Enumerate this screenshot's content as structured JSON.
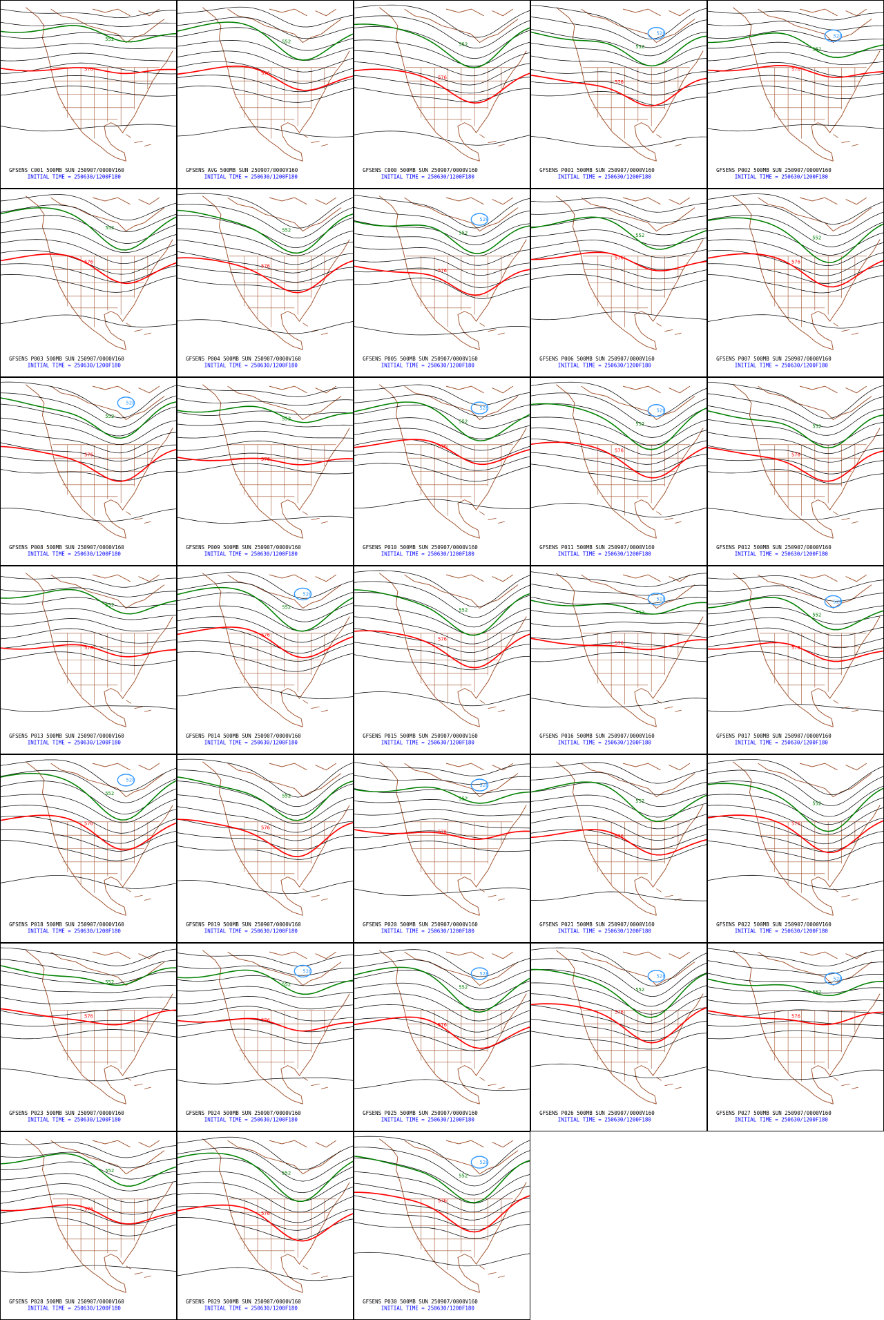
{
  "panels": [
    {
      "title": "GFSENS C001 500MB SUN 250907/0000V160",
      "init": "INITIAL TIME = 250630/1200F180",
      "labels": [
        "576",
        "552"
      ]
    },
    {
      "title": "GFSENS AVG 500MB SUN 250907/0000V160",
      "init": "INITIAL TIME = 250630/1200F180",
      "labels": [
        "576",
        "552"
      ]
    },
    {
      "title": "GFSENS C000 500MB SUN 250907/0000V160",
      "init": "INITIAL TIME = 250630/1200F180",
      "labels": [
        "576",
        "552"
      ]
    },
    {
      "title": "GFSENS P001 500MB SUN 250907/0000V160",
      "init": "INITIAL TIME = 250630/1200F180",
      "labels": [
        "576",
        "552",
        "528"
      ]
    },
    {
      "title": "GFSENS P002 500MB SUN 250907/0000V160",
      "init": "INITIAL TIME = 250630/1200F180",
      "labels": [
        "576",
        "552",
        "528"
      ]
    },
    {
      "title": "GFSENS P003 500MB SUN 250907/0000V160",
      "init": "INITIAL TIME = 250630/1200F180",
      "labels": [
        "576",
        "552"
      ]
    },
    {
      "title": "GFSENS P004 500MB SUN 250907/0000V160",
      "init": "INITIAL TIME = 250630/1200F180",
      "labels": [
        "576",
        "552"
      ]
    },
    {
      "title": "GFSENS P005 500MB SUN 250907/0000V160",
      "init": "INITIAL TIME = 250630/1200F180",
      "labels": [
        "576",
        "552",
        "528"
      ]
    },
    {
      "title": "GFSENS P006 500MB SUN 250907/0000V160",
      "init": "INITIAL TIME = 250630/1200F180",
      "labels": [
        "576",
        "552"
      ]
    },
    {
      "title": "GFSENS P007 500MB SUN 250907/0000V160",
      "init": "INITIAL TIME = 250630/1200F180",
      "labels": [
        "576",
        "552"
      ]
    },
    {
      "title": "GFSENS P008 500MB SUN 250907/0000V160",
      "init": "INITIAL TIME = 250630/1200F180",
      "labels": [
        "576",
        "552",
        "528"
      ]
    },
    {
      "title": "GFSENS P009 500MB SUN 250907/0000V160",
      "init": "INITIAL TIME = 250630/1200F180",
      "labels": [
        "576",
        "552"
      ]
    },
    {
      "title": "GFSENS P010 500MB SUN 250907/0000V160",
      "init": "INITIAL TIME = 250630/1200F180",
      "labels": [
        "576",
        "552",
        "528"
      ]
    },
    {
      "title": "GFSENS P011 500MB SUN 250907/0000V160",
      "init": "INITIAL TIME = 250630/1200F180",
      "labels": [
        "576",
        "552",
        "528"
      ]
    },
    {
      "title": "GFSENS P012 500MB SUN 250907/0000V160",
      "init": "INITIAL TIME = 250630/1200F180",
      "labels": [
        "576",
        "552"
      ]
    },
    {
      "title": "GFSENS P013 500MB SUN 250907/0000V160",
      "init": "INITIAL TIME = 250630/1200F180",
      "labels": [
        "576",
        "552"
      ]
    },
    {
      "title": "GFSENS P014 500MB SUN 250907/0000V160",
      "init": "INITIAL TIME = 250630/1200F180",
      "labels": [
        "576",
        "552",
        "528"
      ]
    },
    {
      "title": "GFSENS P015 500MB SUN 250907/0000V160",
      "init": "INITIAL TIME = 250630/1200F180",
      "labels": [
        "576",
        "552"
      ]
    },
    {
      "title": "GFSENS P016 500MB SUN 250907/0000V160",
      "init": "INITIAL TIME = 250630/1200F180",
      "labels": [
        "576",
        "552",
        "528"
      ]
    },
    {
      "title": "GFSENS P017 500MB SUN 250907/0000V160",
      "init": "INITIAL TIME = 250630/1200F180",
      "labels": [
        "576",
        "552",
        "528"
      ]
    },
    {
      "title": "GFSENS P018 500MB SUN 250907/0000V160",
      "init": "INITIAL TIME = 250630/1200F180",
      "labels": [
        "576",
        "552",
        "528"
      ]
    },
    {
      "title": "GFSENS P019 500MB SUN 250907/0000V160",
      "init": "INITIAL TIME = 250630/1200F180",
      "labels": [
        "576",
        "552"
      ]
    },
    {
      "title": "GFSENS P020 500MB SUN 250907/0000V160",
      "init": "INITIAL TIME = 250630/1200F180",
      "labels": [
        "576",
        "552",
        "528"
      ]
    },
    {
      "title": "GFSENS P021 500MB SUN 250907/0000V160",
      "init": "INITIAL TIME = 250630/1200F180",
      "labels": [
        "576",
        "552"
      ]
    },
    {
      "title": "GFSENS P022 500MB SUN 250907/0000V160",
      "init": "INITIAL TIME = 250630/1200F180",
      "labels": [
        "576",
        "552"
      ]
    },
    {
      "title": "GFSENS P023 500MB SUN 250907/0000V160",
      "init": "INITIAL TIME = 250630/1200F180",
      "labels": [
        "576",
        "552"
      ]
    },
    {
      "title": "GFSENS P024 500MB SUN 250907/0000V160",
      "init": "INITIAL TIME = 250630/1200F180",
      "labels": [
        "576",
        "552",
        "528"
      ]
    },
    {
      "title": "GFSENS P025 500MB SUN 250907/0000V160",
      "init": "INITIAL TIME = 250630/1200F180",
      "labels": [
        "576",
        "552",
        "528"
      ]
    },
    {
      "title": "GFSENS P026 500MB SUN 250907/0000V160",
      "init": "INITIAL TIME = 250630/1200F180",
      "labels": [
        "576",
        "552",
        "528"
      ]
    },
    {
      "title": "GFSENS P027 500MB SUN 250907/0000V160",
      "init": "INITIAL TIME = 250630/1200F180",
      "labels": [
        "576",
        "552",
        "528"
      ]
    },
    {
      "title": "GFSENS P028 500MB SUN 250907/0000V160",
      "init": "INITIAL TIME = 250630/1200F180",
      "labels": [
        "576",
        "552"
      ]
    },
    {
      "title": "GFSENS P029 500MB SUN 250907/0000V160",
      "init": "INITIAL TIME = 250630/1200F180",
      "labels": [
        "576",
        "552"
      ]
    },
    {
      "title": "GFSENS P030 500MB SUN 250907/0000V160",
      "init": "INITIAL TIME = 250630/1200F180",
      "labels": [
        "576",
        "552",
        "528"
      ]
    }
  ]
}
